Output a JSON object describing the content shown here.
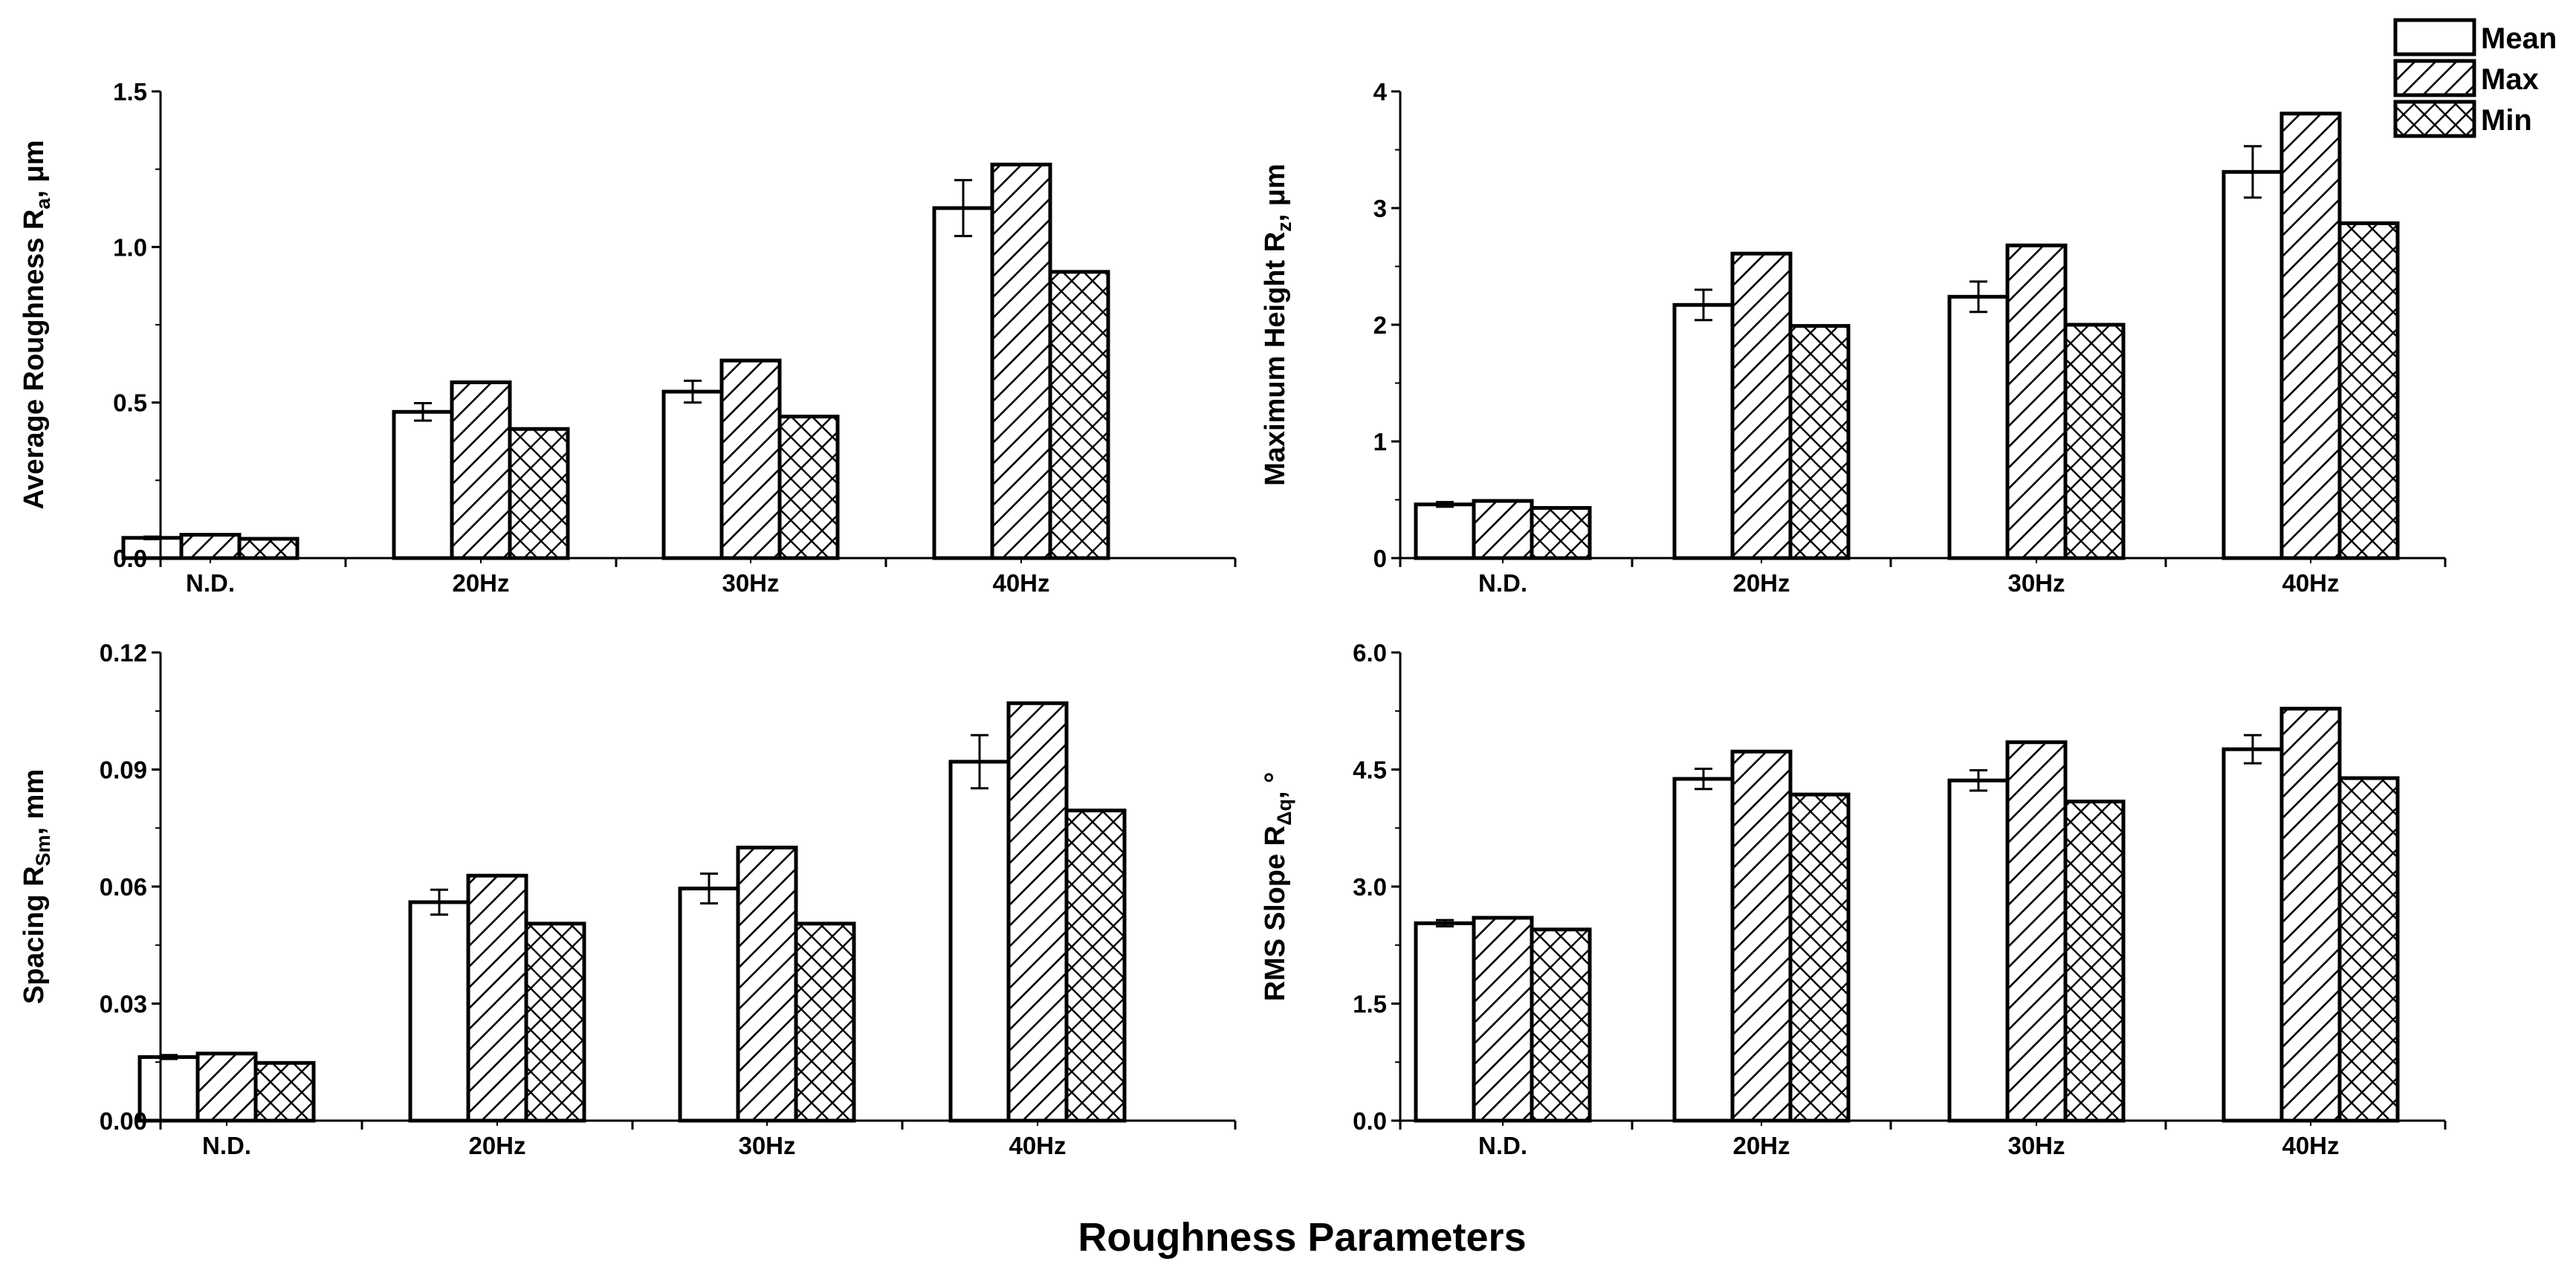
{
  "figure_title": "Roughness Parameters",
  "colors": {
    "bar_fill": "#ffffff",
    "stroke": "#000000",
    "background": "#ffffff"
  },
  "legend": [
    {
      "label": "Mean",
      "pattern": "none"
    },
    {
      "label": "Max",
      "pattern": "diagonal-hatch"
    },
    {
      "label": "Min",
      "pattern": "cross-hatch"
    }
  ],
  "chart_data": [
    {
      "type": "bar",
      "title": "",
      "ylabel": {
        "main": "Average Roughness R",
        "sub": "a",
        "suffix": ", μm"
      },
      "xlabel": "",
      "categories": [
        "N.D.",
        "20Hz",
        "30Hz",
        "40Hz"
      ],
      "ylim": [
        0,
        1.5
      ],
      "yticks": [
        "0.0",
        "0.5",
        "1.0",
        "1.5"
      ],
      "series": [
        {
          "name": "Mean",
          "values": [
            0.065,
            0.47,
            0.535,
            1.125
          ],
          "errors": [
            0.004,
            0.028,
            0.035,
            0.09
          ]
        },
        {
          "name": "Max",
          "values": [
            0.075,
            0.565,
            0.635,
            1.265
          ]
        },
        {
          "name": "Min",
          "values": [
            0.062,
            0.415,
            0.455,
            0.92
          ]
        }
      ]
    },
    {
      "type": "bar",
      "title": "",
      "ylabel": {
        "main": "Maximum Height R",
        "sub": "z",
        "suffix": ", μm"
      },
      "xlabel": "",
      "categories": [
        "N.D.",
        "20Hz",
        "30Hz",
        "40Hz"
      ],
      "ylim": [
        0,
        4
      ],
      "yticks": [
        "0",
        "1",
        "2",
        "3",
        "4"
      ],
      "series": [
        {
          "name": "Mean",
          "values": [
            0.46,
            2.17,
            2.24,
            3.31
          ],
          "errors": [
            0.02,
            0.13,
            0.13,
            0.22
          ]
        },
        {
          "name": "Max",
          "values": [
            0.49,
            2.61,
            2.68,
            3.81
          ]
        },
        {
          "name": "Min",
          "values": [
            0.43,
            1.99,
            2.0,
            2.87
          ]
        }
      ]
    },
    {
      "type": "bar",
      "title": "",
      "ylabel": {
        "main": "Spacing R",
        "sub": "Sm",
        "suffix": ", mm"
      },
      "xlabel": "",
      "categories": [
        "N.D.",
        "20Hz",
        "30Hz",
        "40Hz"
      ],
      "ylim": [
        0,
        0.12
      ],
      "yticks": [
        "0.00",
        "0.03",
        "0.06",
        "0.09",
        "0.12"
      ],
      "series": [
        {
          "name": "Mean",
          "values": [
            0.0163,
            0.056,
            0.0595,
            0.092
          ],
          "errors": [
            0.0005,
            0.0032,
            0.0038,
            0.0068
          ]
        },
        {
          "name": "Max",
          "values": [
            0.0172,
            0.0628,
            0.07,
            0.107
          ]
        },
        {
          "name": "Min",
          "values": [
            0.0148,
            0.0505,
            0.0505,
            0.0795
          ]
        }
      ]
    },
    {
      "type": "bar",
      "title": "",
      "ylabel": {
        "main": "RMS Slope R",
        "sub": "Δq",
        "suffix": ", °"
      },
      "xlabel": "",
      "categories": [
        "N.D.",
        "20Hz",
        "30Hz",
        "40Hz"
      ],
      "ylim": [
        0,
        6.0
      ],
      "yticks": [
        "0.0",
        "1.5",
        "3.0",
        "4.5",
        "6.0"
      ],
      "series": [
        {
          "name": "Mean",
          "values": [
            2.53,
            4.38,
            4.36,
            4.76
          ],
          "errors": [
            0.04,
            0.13,
            0.13,
            0.18
          ]
        },
        {
          "name": "Max",
          "values": [
            2.6,
            4.73,
            4.85,
            5.28
          ]
        },
        {
          "name": "Min",
          "values": [
            2.45,
            4.18,
            4.09,
            4.39
          ]
        }
      ]
    }
  ]
}
